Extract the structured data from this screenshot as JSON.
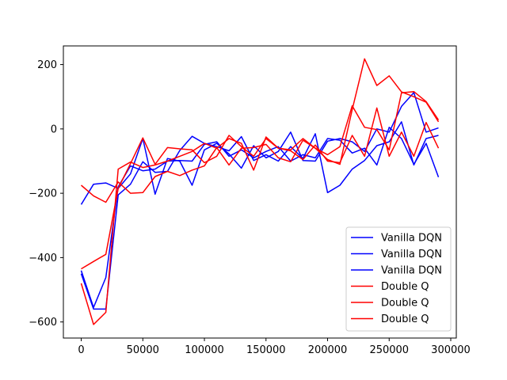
{
  "chart_data": {
    "type": "line",
    "title": "",
    "xlabel": "",
    "ylabel": "",
    "xlim": [
      -14500,
      304500
    ],
    "ylim": [
      -650,
      258
    ],
    "grid": false,
    "legend_position": "lower-right",
    "x_ticks": [
      0,
      50000,
      100000,
      150000,
      200000,
      250000,
      300000
    ],
    "y_ticks": [
      -600,
      -400,
      -200,
      0,
      200
    ],
    "x_tick_labels": [
      "0",
      "50000",
      "100000",
      "150000",
      "200000",
      "250000",
      "300000"
    ],
    "y_tick_labels": [
      "−600",
      "−400",
      "−200",
      "0",
      "200"
    ],
    "x": [
      0,
      10000,
      20000,
      30000,
      40000,
      50000,
      60000,
      70000,
      80000,
      90000,
      100000,
      110000,
      120000,
      130000,
      140000,
      150000,
      160000,
      170000,
      180000,
      190000,
      200000,
      210000,
      220000,
      230000,
      240000,
      250000,
      260000,
      270000,
      280000,
      290000
    ],
    "series": [
      {
        "name": "Vanilla DQN",
        "color": "#0000ff",
        "values": [
          -440,
          -555,
          -462,
          -180,
          -115,
          -130,
          -125,
          -100,
          -98,
          -100,
          -48,
          -40,
          -85,
          -65,
          -90,
          -70,
          -55,
          -100,
          -80,
          -90,
          -30,
          -35,
          -75,
          -60,
          -112,
          5,
          -30,
          -110,
          -45,
          -150
        ]
      },
      {
        "name": "Vanilla DQN",
        "color": "#0000ff",
        "values": [
          -450,
          -560,
          -560,
          -205,
          -172,
          -102,
          -135,
          -132,
          -67,
          -23,
          -45,
          -55,
          -68,
          -24,
          -98,
          -80,
          -100,
          -55,
          -92,
          -15,
          -198,
          -175,
          -125,
          -98,
          -52,
          -40,
          22,
          -112,
          -30,
          -20
        ]
      },
      {
        "name": "Vanilla DQN",
        "color": "#0000ff",
        "values": [
          -235,
          -172,
          -168,
          -185,
          -140,
          -30,
          -203,
          -92,
          -100,
          -175,
          -65,
          -45,
          -78,
          -122,
          -52,
          -90,
          -70,
          -10,
          -98,
          -100,
          -38,
          -30,
          -40,
          -70,
          0,
          -10,
          70,
          113,
          -10,
          3
        ]
      },
      {
        "name": "Double Q",
        "color": "#ff0000",
        "values": [
          -480,
          -608,
          -570,
          -125,
          -103,
          -120,
          -112,
          -100,
          -85,
          -70,
          -45,
          -60,
          -30,
          -45,
          -128,
          -25,
          -60,
          -65,
          -30,
          -60,
          -95,
          -110,
          60,
          218,
          135,
          165,
          115,
          100,
          83,
          22
        ]
      },
      {
        "name": "Double Q",
        "color": "#ff0000",
        "values": [
          -435,
          -412,
          -390,
          -185,
          -108,
          -28,
          -110,
          -58,
          -62,
          -65,
          -105,
          -85,
          -20,
          -55,
          -85,
          -30,
          -60,
          -68,
          -95,
          -50,
          -100,
          -105,
          -20,
          -85,
          65,
          -85,
          -10,
          -85,
          20,
          -60
        ]
      },
      {
        "name": "Double Q",
        "color": "#ff0000",
        "values": [
          -175,
          -208,
          -228,
          -165,
          -200,
          -198,
          -148,
          -132,
          -145,
          -128,
          -115,
          -58,
          -112,
          -60,
          -58,
          -48,
          -90,
          -102,
          -35,
          -60,
          -80,
          -55,
          72,
          5,
          -2,
          -65,
          112,
          116,
          85,
          28
        ]
      }
    ]
  }
}
